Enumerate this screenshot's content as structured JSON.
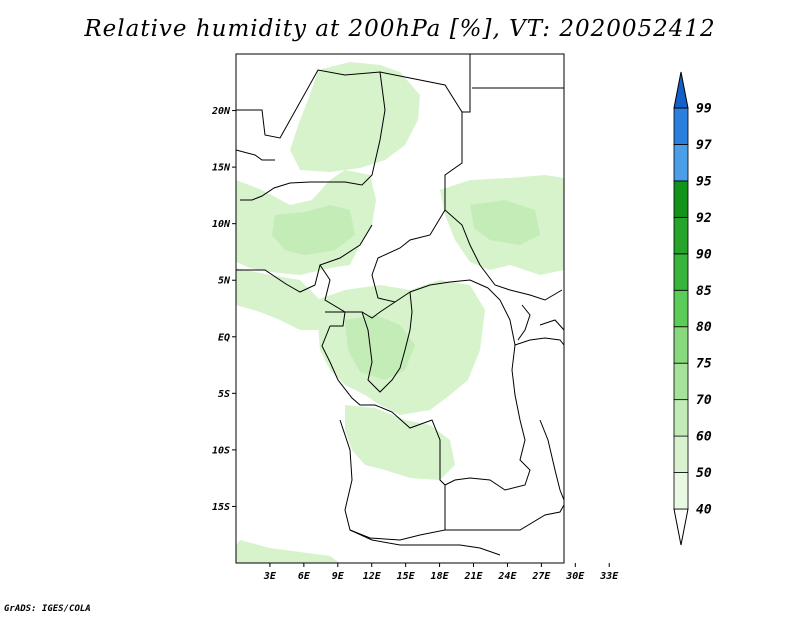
{
  "title": "Relative humidity at 200hPa [%], VT: 2020052412",
  "credit": "GrADS: IGES/COLA",
  "map": {
    "lat_range": [
      -20,
      25
    ],
    "lon_range": [
      0,
      29
    ],
    "lat_ticks": [
      {
        "value": 20,
        "label": "20N"
      },
      {
        "value": 15,
        "label": "15N"
      },
      {
        "value": 10,
        "label": "10N"
      },
      {
        "value": 5,
        "label": "5N"
      },
      {
        "value": 0,
        "label": "EQ"
      },
      {
        "value": -5,
        "label": "5S"
      },
      {
        "value": -10,
        "label": "10S"
      },
      {
        "value": -15,
        "label": "15S"
      }
    ],
    "lon_ticks": [
      {
        "value": 3,
        "label": "3E"
      },
      {
        "value": 6,
        "label": "6E"
      },
      {
        "value": 9,
        "label": "9E"
      },
      {
        "value": 12,
        "label": "12E"
      },
      {
        "value": 15,
        "label": "15E"
      },
      {
        "value": 18,
        "label": "18E"
      },
      {
        "value": 21,
        "label": "21E"
      },
      {
        "value": 24,
        "label": "24E"
      },
      {
        "value": 27,
        "label": "27E"
      },
      {
        "value": 30,
        "label": "30E"
      },
      {
        "value": 33,
        "label": "33E"
      }
    ]
  },
  "colorbar": {
    "levels": [
      {
        "label": "40",
        "color": "#e8f8e3"
      },
      {
        "label": "50",
        "color": "#d8f2cf"
      },
      {
        "label": "60",
        "color": "#c2ebb8"
      },
      {
        "label": "70",
        "color": "#a6e29a"
      },
      {
        "label": "75",
        "color": "#88d87d"
      },
      {
        "label": "80",
        "color": "#5bcc58"
      },
      {
        "label": "85",
        "color": "#3ab53c"
      },
      {
        "label": "90",
        "color": "#27a42a"
      },
      {
        "label": "92",
        "color": "#13931a"
      },
      {
        "label": "95",
        "color": "#4b9ee8"
      },
      {
        "label": "97",
        "color": "#2b7fde"
      },
      {
        "label": "99",
        "color": "#1560c8"
      }
    ],
    "colors": {
      "low_end": "#ffffff",
      "high_end": "#1560c8",
      "humid_light": "#d6f3cc",
      "humid_mid": "#c3ecb7"
    }
  }
}
